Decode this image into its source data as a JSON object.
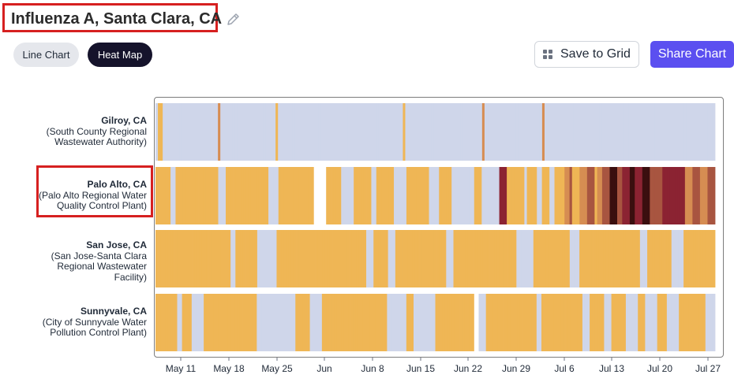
{
  "title": "Influenza A, Santa Clara, CA",
  "icons": {
    "edit": "pencil-icon",
    "grid": "grid-icon"
  },
  "tabs": [
    {
      "label": "Line Chart",
      "active": false
    },
    {
      "label": "Heat Map",
      "active": true
    }
  ],
  "buttons": {
    "save_to_grid": "Save to Grid",
    "share_chart": "Share Chart"
  },
  "colors": {
    "none": "#cfd6ea",
    "low": "#efb655",
    "medium": "#d68d52",
    "high": "#a85540",
    "very_high": "#8b2332",
    "max": "#3a0f0f",
    "accent": "#5b4ff0"
  },
  "chart_data": {
    "type": "heatmap",
    "x_ticks": [
      "May 11",
      "May 18",
      "May 25",
      "Jun",
      "Jun 8",
      "Jun 15",
      "Jun 22",
      "Jun 29",
      "Jul 6",
      "Jul 13",
      "Jul 20",
      "Jul 27"
    ],
    "x_range": [
      "2024-05-07",
      "2024-07-28"
    ],
    "rows": [
      {
        "city": "Gilroy, CA",
        "site": [
          "(South County Regional",
          "Wastewater Authority)"
        ],
        "levels": [
          0,
          1,
          1,
          0,
          0,
          0,
          0,
          0,
          0,
          0,
          0,
          0,
          0,
          0,
          0,
          0,
          0,
          0,
          0,
          0,
          0,
          0,
          0,
          0,
          0,
          0,
          2,
          0,
          0,
          0,
          0,
          0,
          0,
          0,
          0,
          0,
          0,
          0,
          0,
          0,
          0,
          0,
          0,
          0,
          0,
          0,
          0,
          0,
          0,
          0,
          1,
          0,
          0,
          0,
          0,
          0,
          0,
          0,
          0,
          0,
          0,
          0,
          0,
          0,
          0,
          0,
          0,
          0,
          0,
          0,
          0,
          0,
          0,
          0,
          0,
          0,
          0,
          0,
          0,
          0,
          0,
          0,
          0,
          0,
          0,
          0,
          0,
          0,
          0,
          0,
          0,
          0,
          0,
          0,
          0,
          0,
          0,
          0,
          0,
          0,
          0,
          0,
          0,
          1,
          0,
          0,
          0,
          0,
          0,
          0,
          0,
          0,
          0,
          0,
          0,
          0,
          0,
          0,
          0,
          0,
          0,
          0,
          0,
          0,
          0,
          0,
          0,
          0,
          0,
          0,
          0,
          0,
          0,
          0,
          0,
          0,
          2,
          0,
          0,
          0,
          0,
          0,
          0,
          0,
          0,
          0,
          0,
          0,
          0,
          0,
          0,
          0,
          0,
          0,
          0,
          0,
          0,
          0,
          0,
          0,
          0,
          2,
          0,
          0,
          0,
          0,
          0,
          0,
          0,
          0,
          0,
          0,
          0,
          0,
          0,
          0,
          0,
          0,
          0,
          0,
          0,
          0,
          0,
          0,
          0,
          0,
          0,
          0,
          0,
          0,
          0,
          0,
          0,
          0,
          0,
          0,
          0,
          0,
          0,
          0,
          0,
          0,
          0,
          0,
          0,
          0,
          0,
          0,
          0,
          0,
          0,
          0,
          0,
          0,
          0,
          0,
          0,
          0,
          0,
          0,
          0,
          0,
          0,
          0,
          0,
          0,
          0,
          0,
          0,
          0,
          0,
          0,
          0
        ]
      },
      {
        "city": "Palo Alto, CA",
        "site": [
          "(Palo Alto Regional Water",
          "Quality Control Plant)"
        ],
        "levels": [
          1,
          1,
          1,
          1,
          1,
          1,
          0,
          0,
          1,
          1,
          1,
          1,
          1,
          1,
          1,
          1,
          1,
          1,
          1,
          1,
          1,
          1,
          1,
          1,
          1,
          0,
          0,
          0,
          1,
          1,
          1,
          1,
          1,
          1,
          1,
          1,
          1,
          1,
          1,
          1,
          1,
          1,
          1,
          1,
          1,
          0,
          0,
          0,
          0,
          1,
          1,
          1,
          1,
          1,
          1,
          1,
          1,
          1,
          1,
          1,
          1,
          1,
          1,
          -1,
          -1,
          -1,
          -1,
          -1,
          1,
          1,
          1,
          1,
          1,
          1,
          0,
          0,
          0,
          0,
          0,
          1,
          1,
          1,
          1,
          1,
          1,
          1,
          0,
          0,
          1,
          1,
          1,
          1,
          1,
          1,
          1,
          0,
          0,
          0,
          0,
          0,
          1,
          1,
          1,
          1,
          1,
          1,
          1,
          1,
          1,
          0,
          0,
          0,
          0,
          1,
          1,
          1,
          1,
          1,
          0,
          0,
          0,
          0,
          0,
          0,
          0,
          0,
          0,
          1,
          1,
          1,
          0,
          0,
          0,
          0,
          0,
          0,
          0,
          4,
          4,
          4,
          1,
          1,
          1,
          1,
          1,
          1,
          1,
          0,
          1,
          1,
          1,
          1,
          0,
          0,
          1,
          1,
          1,
          0,
          0,
          1,
          1,
          1,
          1,
          2,
          2,
          3,
          1,
          1,
          1,
          2,
          2,
          2,
          3,
          3,
          3,
          1,
          2,
          2,
          3,
          3,
          3,
          5,
          5,
          5,
          3,
          3,
          4,
          4,
          4,
          5,
          5,
          4,
          4,
          4,
          5,
          5,
          5,
          3,
          3,
          3,
          3,
          3,
          4,
          4,
          4,
          4,
          4,
          4,
          4,
          4,
          4,
          2,
          2,
          2,
          3,
          3,
          3,
          2,
          2,
          2,
          3,
          3,
          3
        ]
      },
      {
        "city": "San Jose, CA",
        "site": [
          "(San Jose-Santa Clara",
          "Regional Wastewater",
          "Facility)"
        ],
        "levels": [
          1,
          1,
          1,
          1,
          1,
          1,
          1,
          1,
          1,
          1,
          1,
          1,
          1,
          1,
          1,
          1,
          1,
          1,
          1,
          1,
          1,
          1,
          1,
          1,
          1,
          1,
          1,
          1,
          1,
          1,
          1,
          0,
          0,
          1,
          1,
          1,
          1,
          1,
          1,
          1,
          1,
          1,
          0,
          0,
          0,
          0,
          0,
          0,
          0,
          0,
          1,
          1,
          1,
          1,
          1,
          1,
          1,
          1,
          1,
          1,
          1,
          1,
          1,
          1,
          1,
          1,
          1,
          1,
          1,
          1,
          1,
          1,
          1,
          1,
          1,
          1,
          1,
          1,
          1,
          1,
          1,
          1,
          1,
          1,
          1,
          1,
          1,
          0,
          0,
          0,
          1,
          1,
          1,
          1,
          1,
          1,
          0,
          0,
          0,
          1,
          1,
          1,
          1,
          1,
          1,
          1,
          1,
          1,
          1,
          1,
          1,
          1,
          1,
          1,
          1,
          1,
          1,
          1,
          1,
          1,
          0,
          0,
          0,
          1,
          1,
          1,
          1,
          1,
          1,
          1,
          1,
          1,
          1,
          1,
          1,
          1,
          1,
          1,
          1,
          1,
          1,
          1,
          1,
          1,
          1,
          1,
          1,
          1,
          1,
          0,
          0,
          0,
          0,
          0,
          0,
          0,
          1,
          1,
          1,
          1,
          1,
          1,
          1,
          1,
          1,
          1,
          1,
          1,
          1,
          1,
          1,
          0,
          0,
          0,
          0,
          1,
          1,
          1,
          1,
          1,
          1,
          1,
          1,
          1,
          1,
          1,
          1,
          1,
          1,
          1,
          1,
          1,
          1,
          1,
          1,
          1,
          1,
          1,
          1,
          1,
          0,
          0,
          0,
          1,
          1,
          1,
          1,
          1,
          1,
          1,
          1,
          1,
          1,
          0,
          0,
          0,
          0,
          0,
          1,
          1,
          1,
          1,
          1,
          1,
          1,
          1,
          1,
          1,
          1,
          1,
          1
        ]
      },
      {
        "city": "Sunnyvale, CA",
        "site": [
          "(City of Sunnyvale Water",
          "Pollution Control Plant)"
        ],
        "levels": [
          1,
          1,
          1,
          1,
          1,
          1,
          1,
          1,
          1,
          0,
          0,
          1,
          1,
          1,
          1,
          0,
          0,
          0,
          0,
          0,
          1,
          1,
          1,
          1,
          1,
          1,
          1,
          1,
          1,
          1,
          1,
          1,
          1,
          1,
          1,
          1,
          1,
          1,
          1,
          1,
          1,
          1,
          0,
          0,
          0,
          0,
          0,
          0,
          0,
          0,
          0,
          0,
          0,
          0,
          0,
          0,
          0,
          0,
          1,
          1,
          1,
          1,
          1,
          1,
          0,
          0,
          0,
          0,
          0,
          1,
          1,
          1,
          1,
          1,
          1,
          1,
          1,
          1,
          1,
          1,
          1,
          1,
          1,
          1,
          1,
          1,
          1,
          1,
          1,
          1,
          1,
          1,
          1,
          1,
          1,
          1,
          0,
          0,
          0,
          0,
          0,
          0,
          0,
          0,
          1,
          1,
          1,
          0,
          0,
          0,
          0,
          0,
          0,
          0,
          0,
          0,
          1,
          1,
          1,
          1,
          1,
          1,
          1,
          1,
          1,
          1,
          1,
          1,
          1,
          1,
          1,
          1,
          -1,
          -1,
          0,
          0,
          0,
          1,
          1,
          1,
          1,
          1,
          1,
          1,
          1,
          1,
          1,
          1,
          1,
          1,
          1,
          1,
          1,
          1,
          1,
          1,
          1,
          1,
          0,
          0,
          1,
          1,
          1,
          1,
          1,
          1,
          1,
          1,
          1,
          1,
          1,
          1,
          1,
          1,
          1,
          1,
          1,
          0,
          0,
          0,
          1,
          1,
          1,
          1,
          1,
          1,
          0,
          0,
          0,
          1,
          1,
          1,
          1,
          1,
          1,
          0,
          0,
          0,
          0,
          0,
          1,
          1,
          1,
          0,
          0,
          0,
          0,
          0,
          1,
          1,
          1,
          1,
          0,
          0,
          0,
          0,
          0,
          1,
          1,
          1,
          1,
          1,
          1,
          1,
          1,
          1,
          1,
          1,
          0,
          0,
          0,
          0
        ]
      }
    ],
    "legend_scale": [
      "none",
      "low",
      "medium",
      "high",
      "very_high",
      "max"
    ]
  }
}
